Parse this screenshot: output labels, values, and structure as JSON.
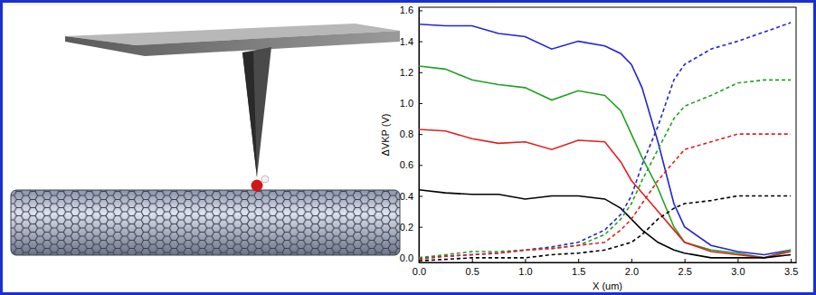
{
  "chart_data": {
    "type": "line",
    "x_label": "X (um)",
    "y_label": "ΔVKP (V)",
    "x": [
      0,
      0.25,
      0.5,
      0.75,
      1.0,
      1.25,
      1.5,
      1.75,
      1.9,
      2.0,
      2.1,
      2.25,
      2.4,
      2.5,
      2.75,
      3.0,
      3.25,
      3.5
    ],
    "xlim": [
      0,
      3.55
    ],
    "ylim": [
      -0.03,
      1.62
    ],
    "xticks": [
      {
        "value": 0,
        "label": "0.0"
      },
      {
        "value": 0.5,
        "label": "0.5"
      },
      {
        "value": 1,
        "label": "1.0"
      },
      {
        "value": 1.5,
        "label": "1.5"
      },
      {
        "value": 2,
        "label": "2.0"
      },
      {
        "value": 2.5,
        "label": "2.5"
      },
      {
        "value": 3,
        "label": "3.0"
      },
      {
        "value": 3.5,
        "label": "3.5"
      }
    ],
    "yticks": [
      {
        "value": 0,
        "label": "0.0"
      },
      {
        "value": 0.2,
        "label": "0.2"
      },
      {
        "value": 0.4,
        "label": "0.4"
      },
      {
        "value": 0.6,
        "label": "0.6"
      },
      {
        "value": 0.8,
        "label": "0.8"
      },
      {
        "value": 1,
        "label": "1.0"
      },
      {
        "value": 1.2,
        "label": "1.2"
      },
      {
        "value": 1.4,
        "label": "1.4"
      },
      {
        "value": 1.6,
        "label": "1.6"
      }
    ],
    "grid": false,
    "series": [
      {
        "color": "#2424d8",
        "line_style": "solid",
        "values": [
          1.51,
          1.5,
          1.5,
          1.45,
          1.43,
          1.35,
          1.4,
          1.37,
          1.32,
          1.25,
          1.1,
          0.75,
          0.35,
          0.2,
          0.08,
          0.04,
          0.02,
          0.05
        ]
      },
      {
        "color": "#22a022",
        "line_style": "solid",
        "values": [
          1.24,
          1.22,
          1.15,
          1.12,
          1.1,
          1.02,
          1.08,
          1.05,
          0.95,
          0.8,
          0.65,
          0.45,
          0.2,
          0.1,
          0.05,
          0.03,
          0.0,
          0.05
        ]
      },
      {
        "color": "#e02020",
        "line_style": "solid",
        "values": [
          0.83,
          0.82,
          0.77,
          0.74,
          0.75,
          0.7,
          0.76,
          0.75,
          0.62,
          0.5,
          0.42,
          0.3,
          0.18,
          0.1,
          0.04,
          0.02,
          0.0,
          0.04
        ]
      },
      {
        "color": "#000000",
        "line_style": "solid",
        "values": [
          0.44,
          0.42,
          0.41,
          0.41,
          0.38,
          0.4,
          0.4,
          0.38,
          0.32,
          0.25,
          0.18,
          0.1,
          0.05,
          0.03,
          0.0,
          0.0,
          0.0,
          0.02
        ]
      },
      {
        "color": "#2424d8",
        "line_style": "dashed",
        "values": [
          0.0,
          0.01,
          0.02,
          0.03,
          0.05,
          0.07,
          0.1,
          0.18,
          0.28,
          0.4,
          0.6,
          0.85,
          1.15,
          1.25,
          1.35,
          1.4,
          1.46,
          1.52
        ]
      },
      {
        "color": "#22a022",
        "line_style": "dashed",
        "values": [
          0.0,
          0.02,
          0.04,
          0.04,
          0.05,
          0.06,
          0.08,
          0.15,
          0.25,
          0.35,
          0.5,
          0.7,
          0.9,
          0.98,
          1.05,
          1.13,
          1.15,
          1.15
        ]
      },
      {
        "color": "#e02020",
        "line_style": "dashed",
        "values": [
          -0.01,
          0.01,
          0.02,
          0.03,
          0.05,
          0.06,
          0.08,
          0.1,
          0.18,
          0.25,
          0.35,
          0.5,
          0.62,
          0.7,
          0.75,
          0.8,
          0.8,
          0.8
        ]
      },
      {
        "color": "#000000",
        "line_style": "dashed",
        "values": [
          -0.02,
          -0.01,
          0.0,
          0.0,
          0.0,
          0.02,
          0.03,
          0.05,
          0.08,
          0.1,
          0.15,
          0.25,
          0.32,
          0.35,
          0.37,
          0.4,
          0.4,
          0.4
        ]
      }
    ]
  }
}
